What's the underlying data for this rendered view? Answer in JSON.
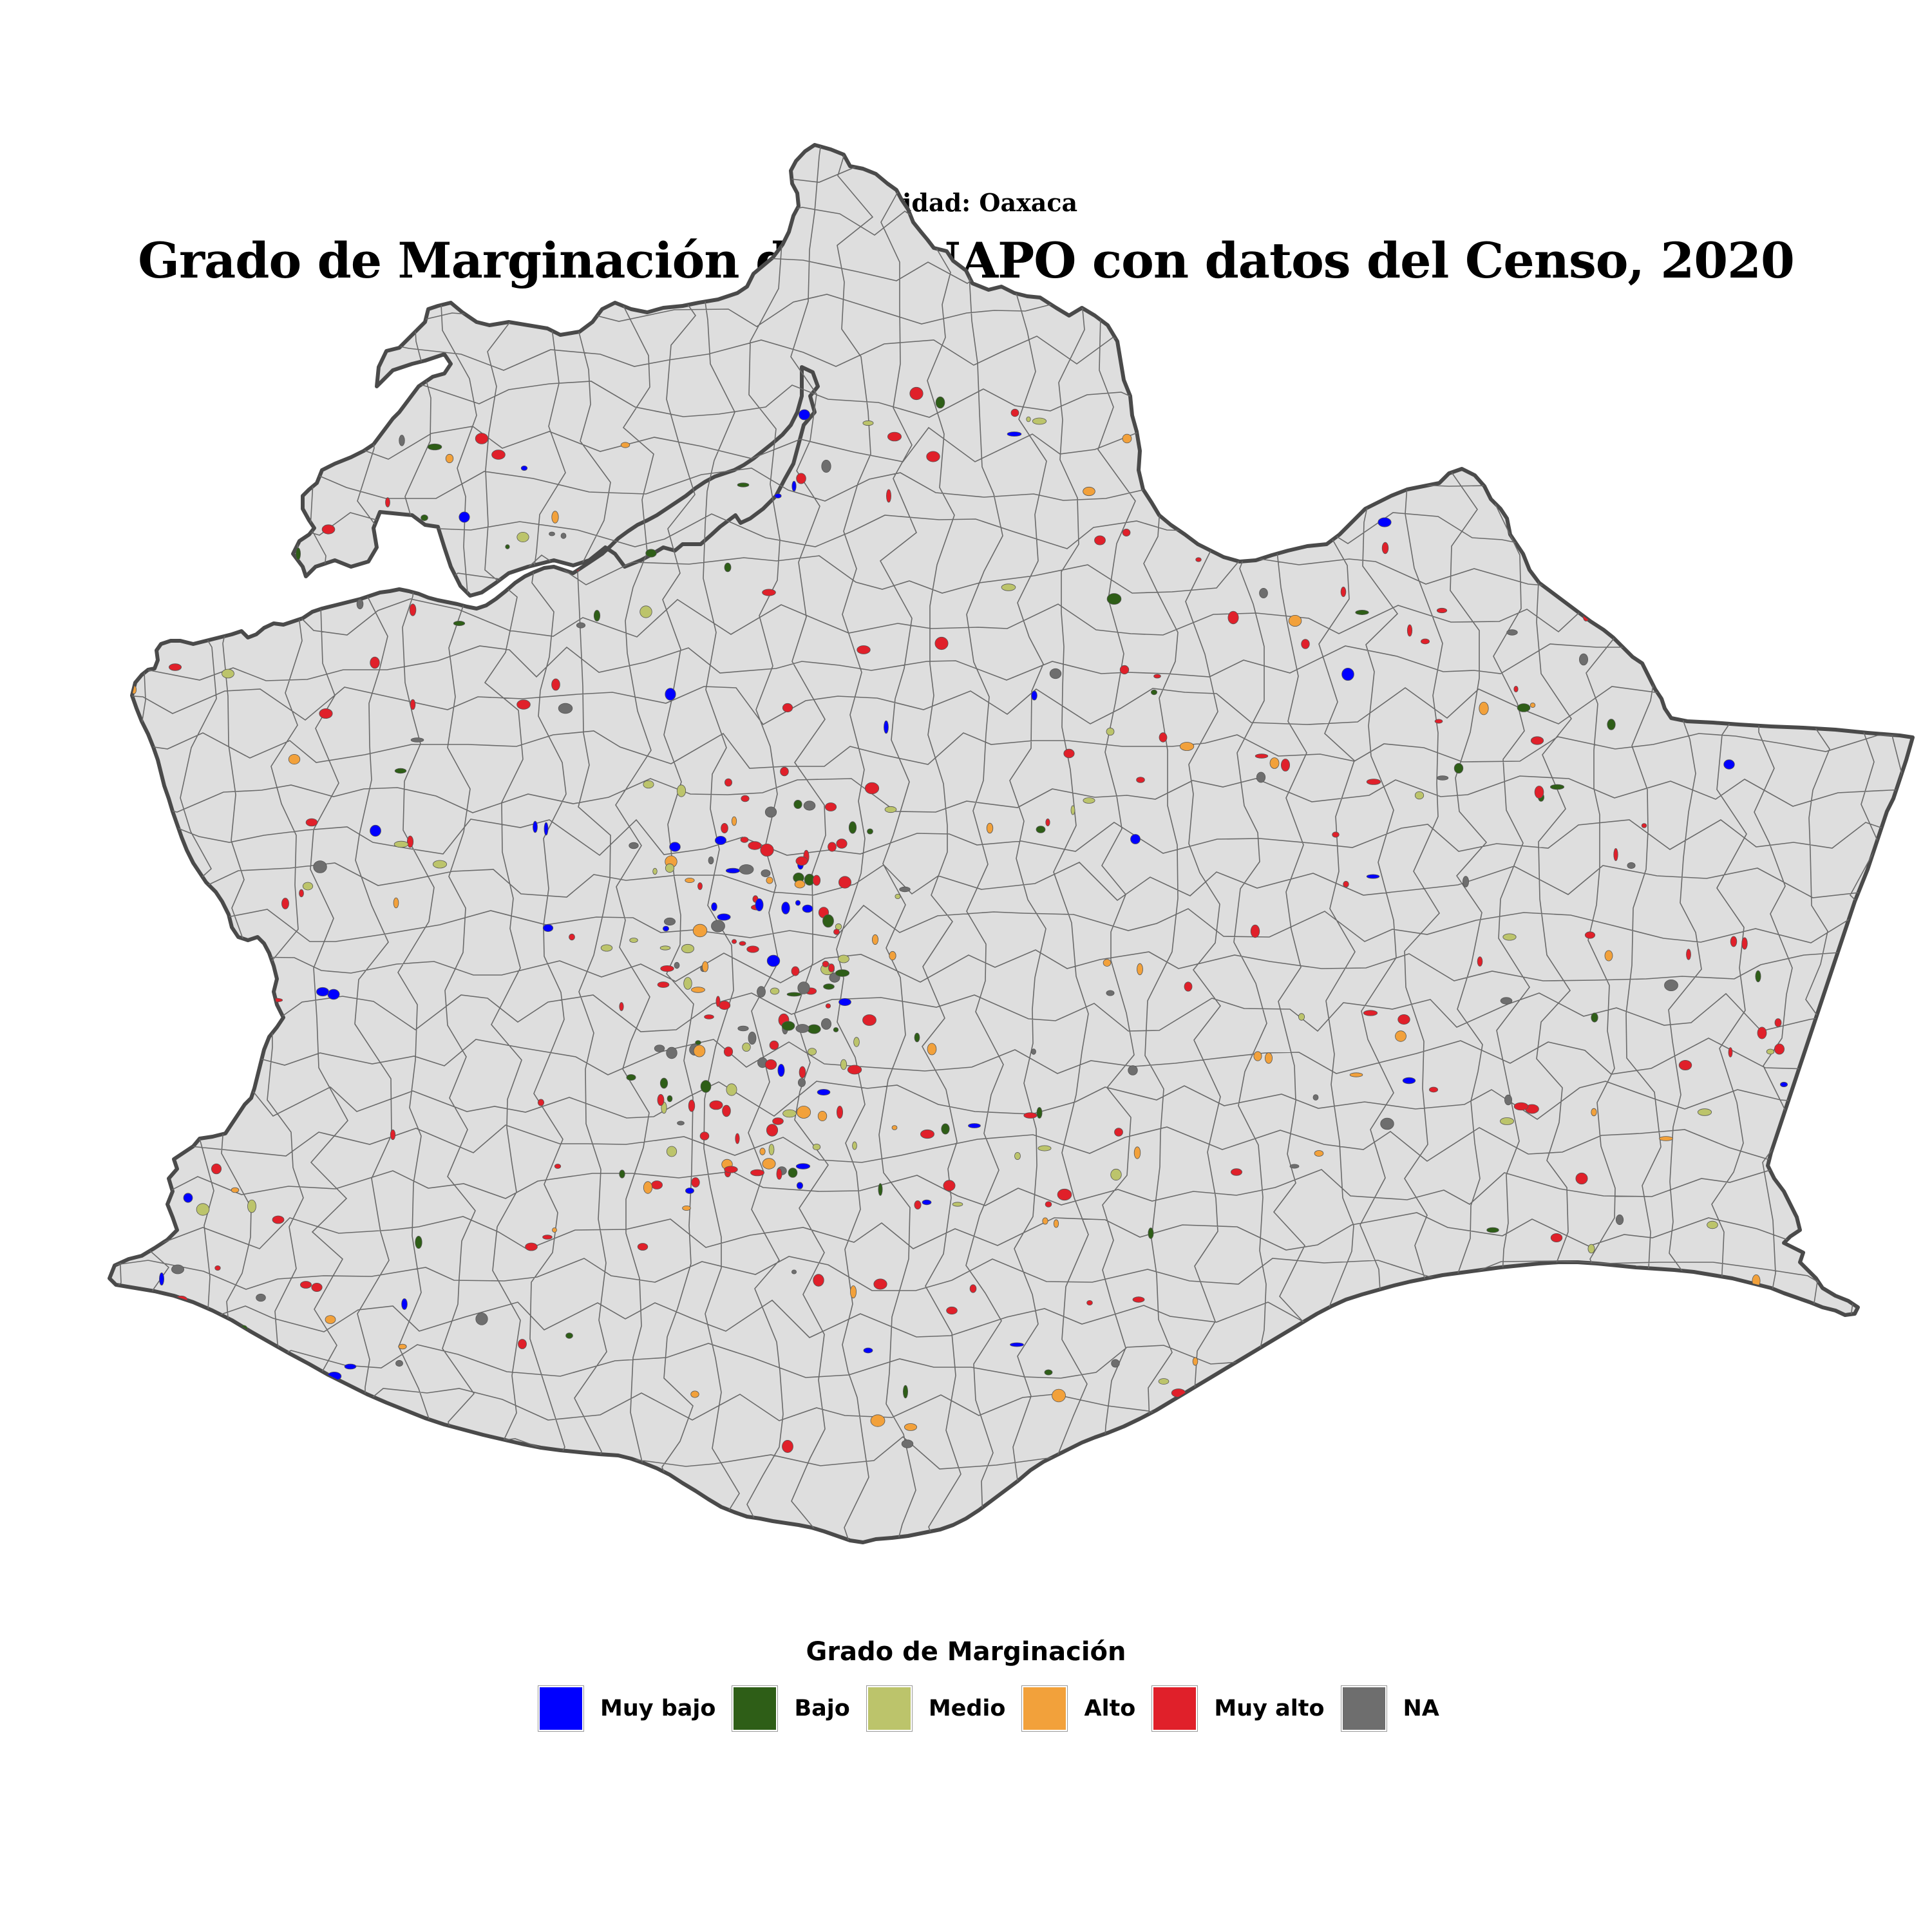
{
  "header": {
    "subtitle": "Entidad: Oaxaca",
    "title": "Grado de Marginación de CONAPO con datos del Censo, 2020"
  },
  "map": {
    "region": "Oaxaca",
    "fill_color": "#e0e0e0",
    "border_color": "#555555",
    "outline_color": "#444444"
  },
  "legend": {
    "title": "Grado de Marginación",
    "items": [
      {
        "label": "Muy bajo",
        "color": "#0000ff"
      },
      {
        "label": "Bajo",
        "color": "#2e5e17"
      },
      {
        "label": "Medio",
        "color": "#bcc46b"
      },
      {
        "label": "Alto",
        "color": "#f2a13b"
      },
      {
        "label": "Muy alto",
        "color": "#e0202a"
      },
      {
        "label": "NA",
        "color": "#6e6e6e"
      }
    ]
  }
}
